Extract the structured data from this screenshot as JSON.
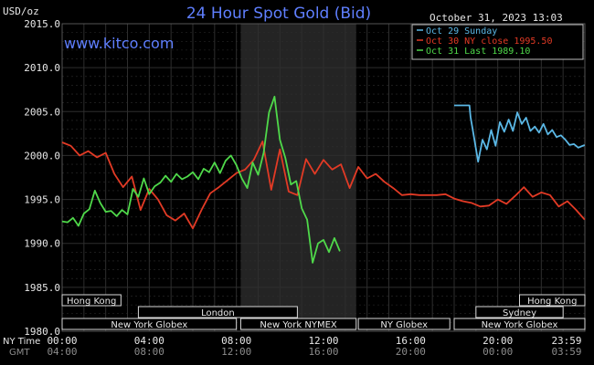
{
  "header": {
    "unit": "USD/oz",
    "title": "24 Hour Spot Gold (Bid)",
    "timestamp": "October 31, 2023 13:03",
    "site": "www.kitco.com"
  },
  "colors": {
    "background": "#000000",
    "plot": "#000000",
    "grid": "#2e2e2e",
    "axis_text": "#e8e8e8",
    "title": "#5f7fff",
    "site": "#5f7fff",
    "session_fill": "#242424",
    "series_sunday": "#5bb8e6",
    "series_close": "#e23a25",
    "series_last": "#4fd94a",
    "market_box": "#d8d8d8",
    "gmt_text": "#8c8c8c"
  },
  "market_sessions": {
    "row1": [
      {
        "label": "Hong Kong",
        "start": -0.5,
        "end": 2.7
      },
      {
        "label": "Hong Kong",
        "start": 21.0,
        "end": 24.0
      }
    ],
    "row2": [
      {
        "label": "London",
        "start": 3.5,
        "end": 10.8
      },
      {
        "label": "Sydney",
        "start": 19.0,
        "end": 23.0
      }
    ],
    "row3": [
      {
        "label": "New York Globex",
        "start": -0.5,
        "end": 8.0
      },
      {
        "label": "New York NYMEX",
        "start": 8.2,
        "end": 13.5
      },
      {
        "label": "NY Globex",
        "start": 13.6,
        "end": 17.8
      },
      {
        "label": "New York Globex",
        "start": 18.0,
        "end": 24.0
      }
    ]
  },
  "chart_data": {
    "type": "line",
    "title": "24 Hour Spot Gold (Bid)",
    "ylabel": "USD/oz",
    "xlabel": "",
    "xlim": [
      0,
      24
    ],
    "ylim": [
      1980,
      2015
    ],
    "yticks": [
      "2015.0",
      "2010.0",
      "2005.0",
      "2000.0",
      "1995.0",
      "1990.0",
      "1985.0",
      "1980.0"
    ],
    "xticks_ny": [
      "00:00",
      "04:00",
      "08:00",
      "12:00",
      "16:00",
      "20:00",
      "23:59"
    ],
    "xticks_gmt": [
      "04:00",
      "08:00",
      "12:00",
      "16:00",
      "20:00",
      "00:00",
      "03:59"
    ],
    "xaxis_label_ny": "NY Time",
    "xaxis_label_gmt": "GMT",
    "grid": true,
    "shaded_region": [
      8.2,
      13.5
    ],
    "legend": {
      "placement": "top-right",
      "entries": [
        "Oct 29 Sunday",
        "Oct 30 NY close 1995.50",
        "Oct 31 Last 1989.10"
      ]
    },
    "series": [
      {
        "name": "Oct 29 Sunday",
        "color": "#5bb8e6",
        "x": [
          18.0,
          18.7,
          18.75,
          18.9,
          19.1,
          19.3,
          19.5,
          19.7,
          19.9,
          20.1,
          20.3,
          20.5,
          20.7,
          20.9,
          21.1,
          21.3,
          21.5,
          21.7,
          21.9,
          22.1,
          22.3,
          22.5,
          22.7,
          22.9,
          23.1,
          23.3,
          23.5,
          23.7,
          23.99
        ],
        "y": [
          2005.7,
          2005.7,
          2004.4,
          2002.2,
          1999.3,
          2001.8,
          2000.7,
          2002.9,
          2001.1,
          2003.8,
          2002.7,
          2004.1,
          2002.8,
          2004.9,
          2003.6,
          2004.3,
          2002.8,
          2003.3,
          2002.6,
          2003.6,
          2002.4,
          2002.9,
          2002.1,
          2002.3,
          2001.8,
          2001.2,
          2001.3,
          2000.9,
          2001.2
        ]
      },
      {
        "name": "Oct 30 NY close 1995.50",
        "color": "#e23a25",
        "x": [
          0.0,
          0.4,
          0.8,
          1.2,
          1.6,
          2.0,
          2.4,
          2.8,
          3.2,
          3.6,
          4.0,
          4.4,
          4.8,
          5.2,
          5.6,
          6.0,
          6.4,
          6.8,
          7.2,
          7.6,
          8.0,
          8.4,
          8.8,
          9.2,
          9.6,
          10.0,
          10.4,
          10.8,
          11.2,
          11.6,
          12.0,
          12.4,
          12.8,
          13.2,
          13.6,
          14.0,
          14.4,
          14.8,
          15.2,
          15.6,
          16.0,
          16.4,
          16.8,
          17.2,
          17.6,
          18.0,
          18.4,
          18.8,
          19.2,
          19.6,
          20.0,
          20.4,
          20.8,
          21.2,
          21.6,
          22.0,
          22.4,
          22.8,
          23.2,
          23.6,
          23.99
        ],
        "y": [
          2001.5,
          2001.1,
          2000.0,
          2000.5,
          1999.8,
          2000.3,
          1997.9,
          1996.4,
          1997.6,
          1993.8,
          1996.2,
          1995.0,
          1993.2,
          1992.6,
          1993.4,
          1991.7,
          1993.8,
          1995.7,
          1996.4,
          1997.2,
          1998.0,
          1998.4,
          1999.5,
          2001.6,
          1996.1,
          2000.7,
          1995.9,
          1995.5,
          1999.6,
          1997.9,
          1999.5,
          1998.4,
          1999.0,
          1996.3,
          1998.7,
          1997.4,
          1997.9,
          1997.0,
          1996.3,
          1995.5,
          1995.6,
          1995.5,
          1995.5,
          1995.5,
          1995.6,
          1995.1,
          1994.8,
          1994.6,
          1994.2,
          1994.3,
          1995.0,
          1994.5,
          1995.4,
          1996.4,
          1995.3,
          1995.8,
          1995.5,
          1994.2,
          1994.8,
          1993.8,
          1992.7
        ]
      },
      {
        "name": "Oct 31 Last 1989.10",
        "color": "#4fd94a",
        "x": [
          0.0,
          0.25,
          0.5,
          0.75,
          1.0,
          1.25,
          1.5,
          1.75,
          2.0,
          2.25,
          2.5,
          2.75,
          3.0,
          3.25,
          3.5,
          3.75,
          4.0,
          4.25,
          4.5,
          4.75,
          5.0,
          5.25,
          5.5,
          5.75,
          6.0,
          6.25,
          6.5,
          6.75,
          7.0,
          7.25,
          7.5,
          7.75,
          8.0,
          8.25,
          8.5,
          8.75,
          9.0,
          9.25,
          9.5,
          9.75,
          10.0,
          10.25,
          10.5,
          10.75,
          11.0,
          11.25,
          11.5,
          11.75,
          12.0,
          12.25,
          12.5,
          12.75
        ],
        "y": [
          1992.5,
          1992.4,
          1992.9,
          1992.0,
          1993.4,
          1993.9,
          1996.0,
          1994.6,
          1993.6,
          1993.7,
          1993.1,
          1993.8,
          1993.3,
          1996.2,
          1995.3,
          1997.4,
          1995.6,
          1996.5,
          1996.9,
          1997.7,
          1997.0,
          1997.9,
          1997.3,
          1997.6,
          1998.1,
          1997.3,
          1998.5,
          1998.1,
          1999.2,
          1998.0,
          1999.4,
          2000.0,
          1998.9,
          1997.4,
          1996.3,
          1999.2,
          1997.8,
          2000.3,
          2004.9,
          2006.7,
          2001.8,
          1999.7,
          1996.7,
          1997.1,
          1994.0,
          1992.7,
          1987.8,
          1990.0,
          1990.4,
          1989.0,
          1990.6,
          1989.1
        ]
      }
    ]
  }
}
